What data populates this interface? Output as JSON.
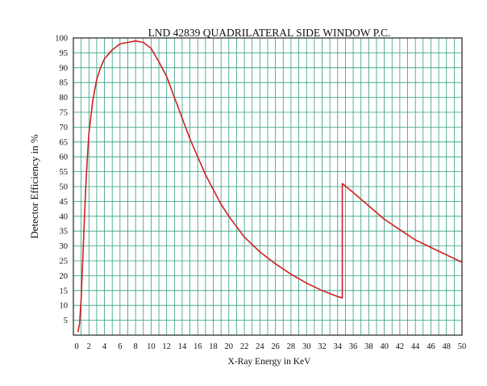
{
  "chart_data": {
    "type": "line",
    "title": "LND 42839 QUADRILATERAL SIDE WINDOW P.C.",
    "xlabel": "X-Ray Energy in KeV",
    "ylabel": "Detector Efficiency in %",
    "xlim": [
      0,
      50
    ],
    "ylim": [
      0,
      100
    ],
    "x_ticks": [
      0,
      2,
      4,
      6,
      8,
      10,
      12,
      14,
      16,
      18,
      20,
      22,
      24,
      26,
      28,
      30,
      32,
      34,
      36,
      38,
      40,
      42,
      44,
      46,
      48,
      50
    ],
    "y_ticks": [
      5,
      10,
      15,
      20,
      25,
      30,
      35,
      40,
      45,
      50,
      55,
      60,
      65,
      70,
      75,
      80,
      85,
      90,
      95,
      100
    ],
    "grid": true,
    "grid_color": "#2e9e7e",
    "series": [
      {
        "color": "#d02020",
        "x": [
          0.6,
          0.8,
          1.0,
          1.2,
          1.4,
          1.6,
          1.8,
          2.0,
          2.5,
          3.0,
          3.5,
          4.0,
          5.0,
          6.0,
          7.0,
          8.0,
          9.0,
          10.0,
          11.0,
          12.0,
          13.0,
          14.0,
          15.0,
          16.0,
          17.0,
          18.0,
          19.0,
          20.0,
          22.0,
          24.0,
          26.0,
          28.0,
          30.0,
          32.0,
          33.0,
          34.0,
          34.6,
          34.6,
          36.0,
          38.0,
          40.0,
          42.0,
          44.0,
          46.0,
          48.0,
          50.0
        ],
        "y": [
          1,
          4,
          12,
          25,
          38,
          50,
          60,
          68,
          79,
          86,
          90,
          93,
          96,
          98,
          98.5,
          99,
          98.5,
          96.5,
          92,
          87,
          80,
          73,
          66,
          60,
          54,
          49,
          44,
          40,
          33,
          28,
          24,
          20.5,
          17.5,
          15,
          14,
          13,
          12.5,
          51,
          48,
          43.5,
          39,
          35.5,
          32,
          29.5,
          27,
          24.5
        ]
      }
    ]
  }
}
